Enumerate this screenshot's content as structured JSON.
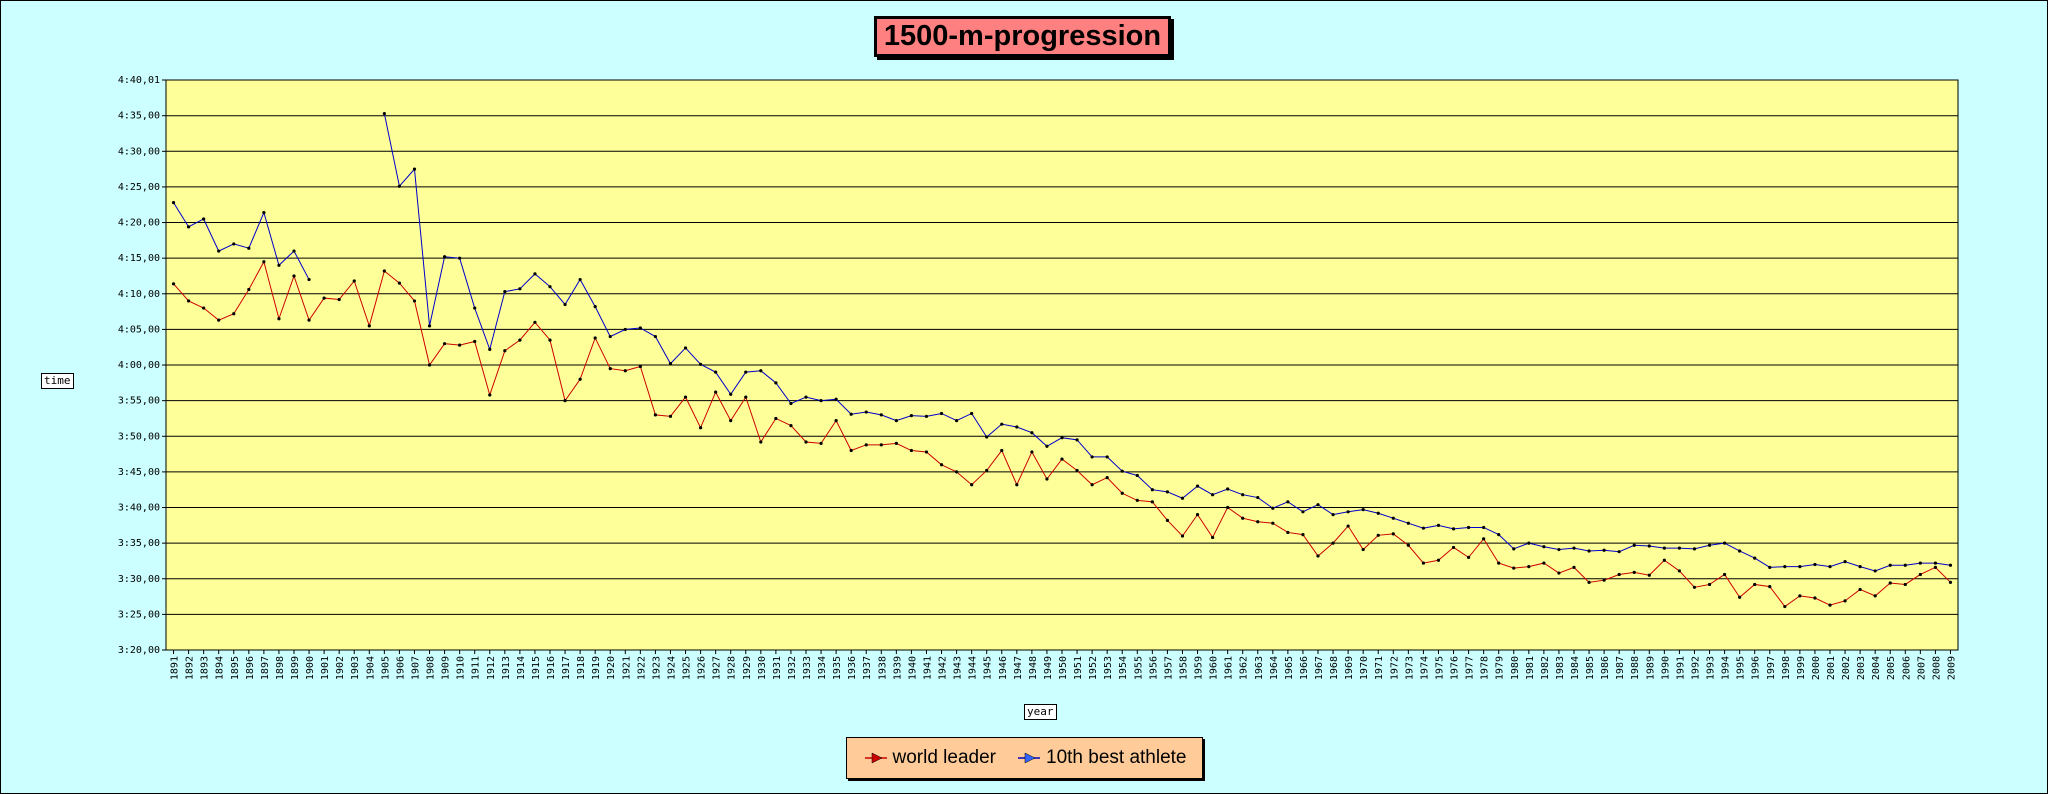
{
  "chart_data": {
    "type": "line",
    "title": "1500-m-progression",
    "xlabel": "year",
    "ylabel": "time",
    "ylim": [
      200,
      280.01
    ],
    "yticks": [
      200,
      205,
      210,
      215,
      220,
      225,
      230,
      235,
      240,
      245,
      250,
      255,
      260,
      265,
      270,
      275,
      280.01
    ],
    "ytick_labels": [
      "3:20,00",
      "3:25,00",
      "3:30,00",
      "3:35,00",
      "3:40,00",
      "3:45,00",
      "3:50,00",
      "3:55,00",
      "4:00,00",
      "4:05,00",
      "4:10,00",
      "4:15,00",
      "4:20,00",
      "4:25,00",
      "4:30,00",
      "4:35,00",
      "4:40,01"
    ],
    "categories": [
      "1891",
      "1892",
      "1893",
      "1894",
      "1895",
      "1896",
      "1897",
      "1898",
      "1899",
      "1900",
      "1901",
      "1902",
      "1903",
      "1904",
      "1905",
      "1906",
      "1907",
      "1908",
      "1909",
      "1910",
      "1911",
      "1912",
      "1913",
      "1914",
      "1915",
      "1916",
      "1917",
      "1918",
      "1919",
      "1920",
      "1921",
      "1922",
      "1923",
      "1924",
      "1925",
      "1926",
      "1927",
      "1928",
      "1929",
      "1930",
      "1931",
      "1932",
      "1933",
      "1934",
      "1935",
      "1936",
      "1937",
      "1938",
      "1939",
      "1940",
      "1941",
      "1942",
      "1943",
      "1944",
      "1945",
      "1946",
      "1947",
      "1948",
      "1949",
      "1950",
      "1951",
      "1952",
      "1953",
      "1954",
      "1955",
      "1956",
      "1957",
      "1958",
      "1959",
      "1960",
      "1961",
      "1962",
      "1963",
      "1964",
      "1965",
      "1966",
      "1967",
      "1968",
      "1969",
      "1970",
      "1971",
      "1972",
      "1973",
      "1974",
      "1975",
      "1976",
      "1977",
      "1978",
      "1979",
      "1980",
      "1981",
      "1982",
      "1983",
      "1984",
      "1985",
      "1986",
      "1987",
      "1988",
      "1989",
      "1990",
      "1991",
      "1992",
      "1993",
      "1994",
      "1995",
      "1996",
      "1997",
      "1998",
      "1999",
      "2000",
      "2001",
      "2002",
      "2003",
      "2004",
      "2005",
      "2006",
      "2007",
      "2008",
      "2009"
    ],
    "grid": true,
    "legend_position": "bottom-center",
    "series": [
      {
        "name": "world leader",
        "color": "#cc0000",
        "values": [
          251.4,
          249,
          248,
          246.3,
          247.2,
          250.6,
          254.5,
          246.5,
          252.5,
          246.3,
          249.4,
          249.2,
          251.8,
          245.5,
          253.2,
          251.5,
          249,
          240,
          243,
          242.8,
          243.3,
          235.8,
          242,
          243.5,
          246,
          243.5,
          235,
          238,
          243.8,
          239.5,
          239.2,
          239.8,
          233,
          232.8,
          235.5,
          231.2,
          236.2,
          232.2,
          235.5,
          229.2,
          232.5,
          231.5,
          229.2,
          229,
          232.2,
          228,
          228.8,
          228.8,
          229,
          228,
          227.8,
          226,
          225,
          223.2,
          225.2,
          228,
          223.2,
          227.8,
          224,
          226.8,
          225.2,
          223.2,
          224.2,
          222,
          221,
          220.8,
          218.2,
          216,
          219,
          215.8,
          220,
          218.5,
          218,
          217.8,
          216.5,
          216.2,
          213.2,
          215,
          217.4,
          214.1,
          216.1,
          216.3,
          214.7,
          212.2,
          212.6,
          214.4,
          213,
          215.6,
          212.2,
          211.5,
          211.7,
          212.2,
          210.8,
          211.6,
          209.5,
          209.8,
          210.6,
          210.9,
          210.5,
          212.6,
          211.1,
          208.8,
          209.2,
          210.6,
          207.4,
          209.2,
          208.9,
          206.1,
          207.6,
          207.3,
          206.3,
          206.9,
          208.5,
          207.6,
          209.4,
          209.2,
          210.6,
          211.6,
          209.5
        ]
      },
      {
        "name": "10th best athlete",
        "color": "#0000cc",
        "values": [
          262.8,
          259.4,
          260.5,
          256,
          257,
          256.4,
          261.4,
          254,
          256,
          252,
          null,
          null,
          null,
          null,
          275.3,
          265.1,
          267.5,
          245.5,
          255.2,
          255,
          248,
          242.2,
          250.3,
          250.7,
          252.8,
          251,
          248.5,
          252,
          248.2,
          244,
          245,
          245.2,
          244,
          240.2,
          242.4,
          240.1,
          239,
          235.9,
          239,
          239.2,
          237.5,
          234.6,
          235.5,
          235,
          235.2,
          233.1,
          233.4,
          233,
          232.2,
          232.9,
          232.8,
          233.2,
          232.2,
          233.2,
          229.9,
          231.7,
          231.3,
          230.5,
          228.6,
          229.8,
          229.5,
          227.1,
          227.1,
          225.1,
          224.5,
          222.5,
          222.2,
          221.3,
          223,
          221.8,
          222.6,
          221.8,
          221.4,
          219.9,
          220.8,
          219.4,
          220.4,
          219,
          219.4,
          219.7,
          219.2,
          218.5,
          217.8,
          217.1,
          217.5,
          217,
          217.2,
          217.2,
          216.2,
          214.2,
          215,
          214.5,
          214.1,
          214.3,
          213.9,
          214,
          213.8,
          214.7,
          214.6,
          214.3,
          214.3,
          214.2,
          214.7,
          215,
          213.9,
          212.9,
          211.6,
          211.7,
          211.7,
          212,
          211.7,
          212.4,
          211.7,
          211.1,
          211.9,
          211.9,
          212.2,
          212.2,
          211.9
        ]
      }
    ]
  }
}
